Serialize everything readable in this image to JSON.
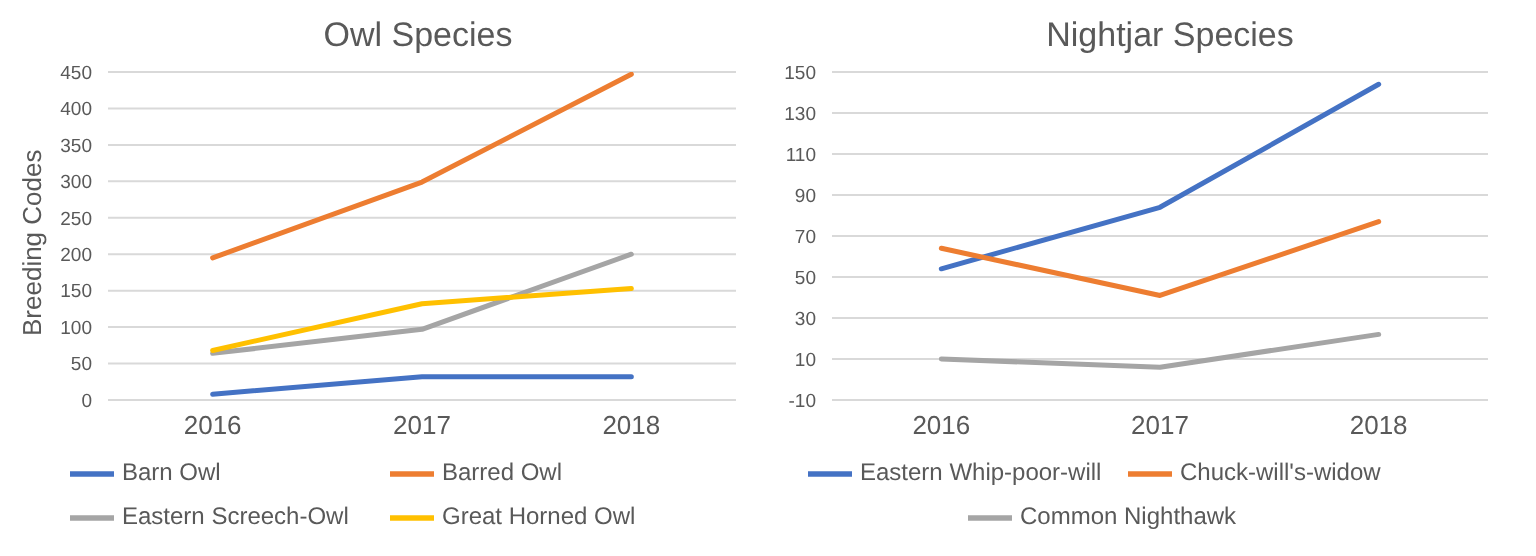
{
  "chart_data": [
    {
      "type": "line",
      "title": "Owl Species",
      "ylabel": "Breeding Codes",
      "categories": [
        "2016",
        "2017",
        "2018"
      ],
      "series": [
        {
          "name": "Barn Owl",
          "color": "#4472c4",
          "values": [
            8,
            32,
            32
          ]
        },
        {
          "name": "Barred Owl",
          "color": "#ed7d31",
          "values": [
            195,
            299,
            447
          ]
        },
        {
          "name": "Eastern Screech-Owl",
          "color": "#a5a5a5",
          "values": [
            64,
            97,
            200
          ]
        },
        {
          "name": "Great Horned Owl",
          "color": "#ffc000",
          "values": [
            68,
            132,
            153
          ]
        }
      ],
      "ylim": [
        0,
        450
      ],
      "yticks": [
        0,
        50,
        100,
        150,
        200,
        250,
        300,
        350,
        400,
        450
      ],
      "grid": "y",
      "legend": "bottom",
      "marker": "none",
      "line_style": "solid"
    },
    {
      "type": "line",
      "title": "Nightjar Species",
      "categories": [
        "2016",
        "2017",
        "2018"
      ],
      "series": [
        {
          "name": "Eastern Whip-poor-will",
          "color": "#4472c4",
          "values": [
            54,
            84,
            144
          ]
        },
        {
          "name": "Chuck-will's-widow",
          "color": "#ed7d31",
          "values": [
            64,
            41,
            77
          ]
        },
        {
          "name": "Common Nighthawk",
          "color": "#a5a5a5",
          "values": [
            10,
            6,
            22
          ]
        }
      ],
      "ylim": [
        -10,
        150
      ],
      "yticks": [
        -10,
        10,
        30,
        50,
        70,
        90,
        110,
        130,
        150
      ],
      "grid": "y",
      "legend": "bottom",
      "marker": "none",
      "line_style": "solid"
    }
  ]
}
